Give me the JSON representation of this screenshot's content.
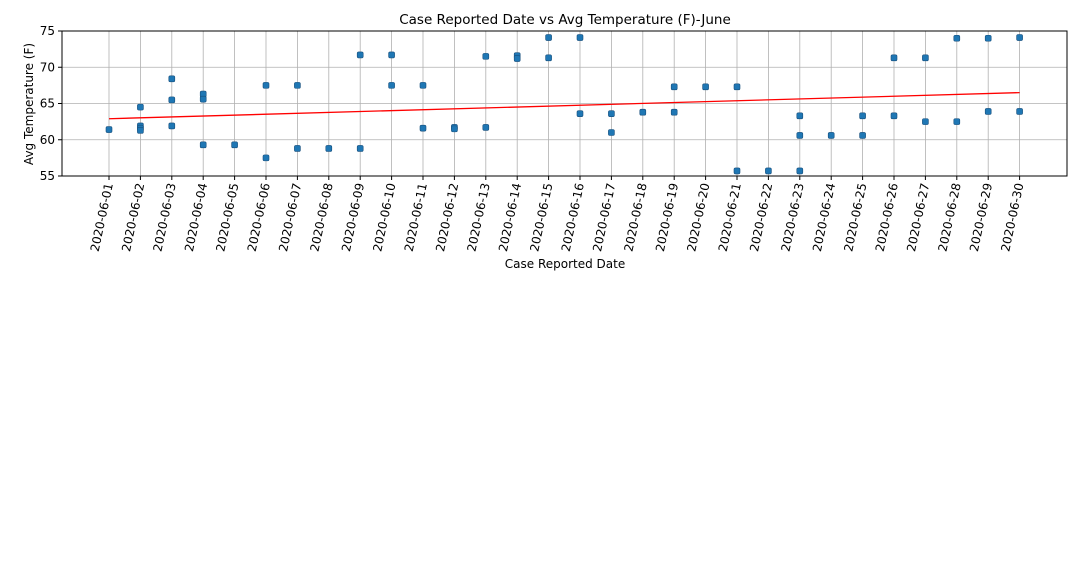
{
  "chart_data": {
    "type": "scatter",
    "title": "Case Reported Date vs Avg Temperature (F)-June",
    "xlabel": "Case Reported Date",
    "ylabel": "Avg Temperature (F)",
    "ylim": [
      55,
      75
    ],
    "yticks": [
      55,
      60,
      65,
      70,
      75
    ],
    "grid": true,
    "categories": [
      "2020-06-01",
      "2020-06-02",
      "2020-06-03",
      "2020-06-04",
      "2020-06-05",
      "2020-06-06",
      "2020-06-07",
      "2020-06-08",
      "2020-06-09",
      "2020-06-10",
      "2020-06-11",
      "2020-06-12",
      "2020-06-13",
      "2020-06-14",
      "2020-06-15",
      "2020-06-16",
      "2020-06-17",
      "2020-06-18",
      "2020-06-19",
      "2020-06-20",
      "2020-06-21",
      "2020-06-22",
      "2020-06-23",
      "2020-06-24",
      "2020-06-25",
      "2020-06-26",
      "2020-06-27",
      "2020-06-28",
      "2020-06-29",
      "2020-06-30"
    ],
    "points": [
      {
        "x": "2020-06-01",
        "y": 61.4
      },
      {
        "x": "2020-06-02",
        "y": 64.5
      },
      {
        "x": "2020-06-02",
        "y": 61.9
      },
      {
        "x": "2020-06-02",
        "y": 61.6
      },
      {
        "x": "2020-06-02",
        "y": 61.3
      },
      {
        "x": "2020-06-03",
        "y": 68.4
      },
      {
        "x": "2020-06-03",
        "y": 65.5
      },
      {
        "x": "2020-06-03",
        "y": 61.9
      },
      {
        "x": "2020-06-04",
        "y": 66.3
      },
      {
        "x": "2020-06-04",
        "y": 65.6
      },
      {
        "x": "2020-06-04",
        "y": 59.3
      },
      {
        "x": "2020-06-05",
        "y": 59.3
      },
      {
        "x": "2020-06-06",
        "y": 67.5
      },
      {
        "x": "2020-06-06",
        "y": 57.5
      },
      {
        "x": "2020-06-07",
        "y": 67.5
      },
      {
        "x": "2020-06-07",
        "y": 58.8
      },
      {
        "x": "2020-06-08",
        "y": 58.8
      },
      {
        "x": "2020-06-09",
        "y": 71.7
      },
      {
        "x": "2020-06-09",
        "y": 58.8
      },
      {
        "x": "2020-06-10",
        "y": 71.7
      },
      {
        "x": "2020-06-10",
        "y": 67.5
      },
      {
        "x": "2020-06-11",
        "y": 67.5
      },
      {
        "x": "2020-06-11",
        "y": 61.6
      },
      {
        "x": "2020-06-12",
        "y": 61.7
      },
      {
        "x": "2020-06-12",
        "y": 61.5
      },
      {
        "x": "2020-06-13",
        "y": 71.5
      },
      {
        "x": "2020-06-13",
        "y": 61.7
      },
      {
        "x": "2020-06-14",
        "y": 71.6
      },
      {
        "x": "2020-06-14",
        "y": 71.2
      },
      {
        "x": "2020-06-15",
        "y": 74.1
      },
      {
        "x": "2020-06-15",
        "y": 71.3
      },
      {
        "x": "2020-06-16",
        "y": 74.1
      },
      {
        "x": "2020-06-16",
        "y": 63.6
      },
      {
        "x": "2020-06-17",
        "y": 63.6
      },
      {
        "x": "2020-06-17",
        "y": 61.0
      },
      {
        "x": "2020-06-18",
        "y": 63.8
      },
      {
        "x": "2020-06-19",
        "y": 67.3
      },
      {
        "x": "2020-06-19",
        "y": 63.8
      },
      {
        "x": "2020-06-20",
        "y": 67.3
      },
      {
        "x": "2020-06-21",
        "y": 67.3
      },
      {
        "x": "2020-06-21",
        "y": 55.7
      },
      {
        "x": "2020-06-22",
        "y": 55.7
      },
      {
        "x": "2020-06-23",
        "y": 63.3
      },
      {
        "x": "2020-06-23",
        "y": 60.6
      },
      {
        "x": "2020-06-23",
        "y": 55.7
      },
      {
        "x": "2020-06-24",
        "y": 60.6
      },
      {
        "x": "2020-06-25",
        "y": 63.3
      },
      {
        "x": "2020-06-25",
        "y": 60.6
      },
      {
        "x": "2020-06-26",
        "y": 71.3
      },
      {
        "x": "2020-06-26",
        "y": 63.3
      },
      {
        "x": "2020-06-27",
        "y": 71.3
      },
      {
        "x": "2020-06-27",
        "y": 62.5
      },
      {
        "x": "2020-06-28",
        "y": 74.0
      },
      {
        "x": "2020-06-28",
        "y": 62.5
      },
      {
        "x": "2020-06-29",
        "y": 74.0
      },
      {
        "x": "2020-06-29",
        "y": 63.9
      },
      {
        "x": "2020-06-30",
        "y": 74.1
      },
      {
        "x": "2020-06-30",
        "y": 63.9
      }
    ],
    "trendline": {
      "start": {
        "x": "2020-06-01",
        "y": 62.9
      },
      "end": {
        "x": "2020-06-30",
        "y": 66.5
      }
    },
    "colors": {
      "points": "#1f77b4",
      "trendline": "#ff0000",
      "grid": "#b0b0b0",
      "axes": "#000000"
    }
  }
}
